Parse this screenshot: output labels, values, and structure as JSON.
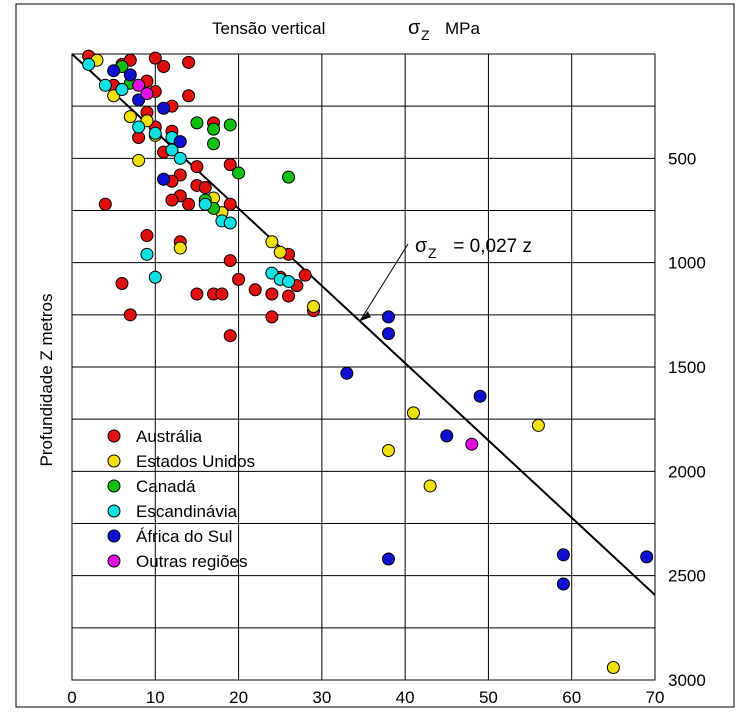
{
  "chart_data": {
    "type": "scatter",
    "title": "Tensão vertical",
    "title_symbol": "σ",
    "title_symbol_sub": "Z",
    "title_unit": "MPa",
    "xlabel": "",
    "ylabel": "Profundidade Z metros",
    "xlim": [
      0,
      70
    ],
    "ylim": [
      0,
      3000
    ],
    "y_inverted": true,
    "grid": true,
    "x_ticks": [
      "0",
      "10",
      "20",
      "30",
      "40",
      "50",
      "60",
      "70"
    ],
    "y_ticks": [
      "500",
      "1000",
      "1500",
      "2000",
      "2500",
      "3000"
    ],
    "legend_position": "bottom-left",
    "annotation": {
      "symbol": "σ",
      "sub": "Z",
      "text": " = 0,027 z",
      "line": {
        "slope": 0.027
      }
    },
    "series": [
      {
        "name": "Austrália",
        "color": "#e01010",
        "points": [
          [
            2,
            10
          ],
          [
            6,
            50
          ],
          [
            7,
            30
          ],
          [
            10,
            20
          ],
          [
            11,
            60
          ],
          [
            14,
            40
          ],
          [
            5,
            150
          ],
          [
            9,
            130
          ],
          [
            10,
            180
          ],
          [
            12,
            250
          ],
          [
            9,
            280
          ],
          [
            14,
            200
          ],
          [
            10,
            350
          ],
          [
            8,
            400
          ],
          [
            11,
            470
          ],
          [
            13,
            580
          ],
          [
            11,
            600
          ],
          [
            12,
            610
          ],
          [
            15,
            630
          ],
          [
            16,
            640
          ],
          [
            13,
            680
          ],
          [
            12,
            700
          ],
          [
            14,
            720
          ],
          [
            19,
            720
          ],
          [
            4,
            720
          ],
          [
            9,
            870
          ],
          [
            13,
            900
          ],
          [
            19,
            990
          ],
          [
            20,
            1080
          ],
          [
            22,
            1130
          ],
          [
            26,
            960
          ],
          [
            25,
            1070
          ],
          [
            27,
            1110
          ],
          [
            28,
            1060
          ],
          [
            6,
            1100
          ],
          [
            15,
            1150
          ],
          [
            17,
            1150
          ],
          [
            18,
            1150
          ],
          [
            24,
            1150
          ],
          [
            26,
            1160
          ],
          [
            7,
            1250
          ],
          [
            19,
            1350
          ],
          [
            24,
            1260
          ],
          [
            29,
            1230
          ],
          [
            17,
            330
          ],
          [
            12,
            370
          ],
          [
            15,
            540
          ],
          [
            19,
            530
          ]
        ]
      },
      {
        "name": "Estados Unidos",
        "color": "#f0e010",
        "points": [
          [
            3,
            30
          ],
          [
            5,
            200
          ],
          [
            7,
            300
          ],
          [
            9,
            320
          ],
          [
            10,
            390
          ],
          [
            8,
            510
          ],
          [
            17,
            690
          ],
          [
            18,
            760
          ],
          [
            13,
            930
          ],
          [
            24,
            900
          ],
          [
            25,
            950
          ],
          [
            29,
            1210
          ],
          [
            41,
            1720
          ],
          [
            38,
            1900
          ],
          [
            43,
            2070
          ],
          [
            56,
            1780
          ],
          [
            65,
            2940
          ]
        ]
      },
      {
        "name": "Canadá",
        "color": "#10c010",
        "points": [
          [
            6,
            60
          ],
          [
            7,
            140
          ],
          [
            15,
            330
          ],
          [
            17,
            360
          ],
          [
            19,
            340
          ],
          [
            17,
            430
          ],
          [
            20,
            570
          ],
          [
            26,
            590
          ],
          [
            16,
            700
          ],
          [
            17,
            740
          ]
        ]
      },
      {
        "name": "Escandinávia",
        "color": "#10e0e0",
        "points": [
          [
            2,
            50
          ],
          [
            4,
            150
          ],
          [
            6,
            170
          ],
          [
            8,
            350
          ],
          [
            10,
            380
          ],
          [
            12,
            400
          ],
          [
            12,
            460
          ],
          [
            13,
            500
          ],
          [
            16,
            720
          ],
          [
            18,
            800
          ],
          [
            19,
            810
          ],
          [
            9,
            960
          ],
          [
            10,
            1070
          ],
          [
            24,
            1050
          ],
          [
            25,
            1080
          ],
          [
            26,
            1090
          ]
        ]
      },
      {
        "name": "África do Sul",
        "color": "#1010d0",
        "points": [
          [
            5,
            80
          ],
          [
            7,
            100
          ],
          [
            8,
            220
          ],
          [
            11,
            260
          ],
          [
            13,
            420
          ],
          [
            11,
            600
          ],
          [
            38,
            1260
          ],
          [
            38,
            1340
          ],
          [
            33,
            1530
          ],
          [
            49,
            1640
          ],
          [
            45,
            1830
          ],
          [
            38,
            2420
          ],
          [
            59,
            2400
          ],
          [
            69,
            2410
          ],
          [
            59,
            2540
          ]
        ]
      },
      {
        "name": "Outras regiões",
        "color": "#e010e0",
        "points": [
          [
            8,
            150
          ],
          [
            9,
            190
          ],
          [
            48,
            1870
          ]
        ]
      }
    ]
  }
}
